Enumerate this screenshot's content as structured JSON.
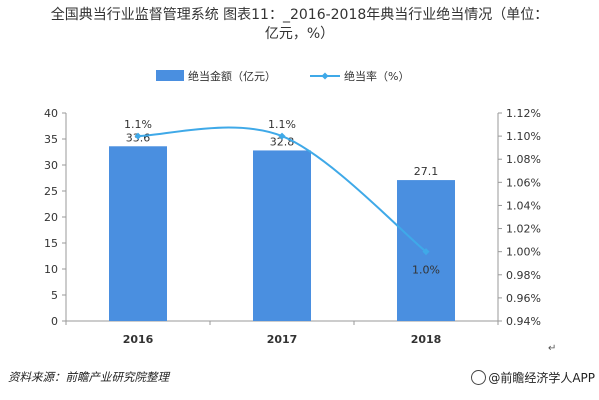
{
  "title": {
    "line1": "全国典当行业监督管理系统 图表11：_2016-2018年典当行业绝当情况（单位：",
    "line2": "亿元，%）"
  },
  "footer": {
    "source": "资料来源：前瞻产业研究院整理",
    "brand": "@前瞻经济学人APP",
    "return_mark": "↵"
  },
  "colors": {
    "bar": "#4a8fe0",
    "line": "#3fa9e8",
    "axis": "#999999",
    "text": "#333333"
  },
  "chart_data": {
    "type": "bar",
    "categories": [
      "2016",
      "2017",
      "2018"
    ],
    "series": [
      {
        "name": "绝当金额（亿元）",
        "type": "bar",
        "axis": "left",
        "values": [
          33.6,
          32.8,
          27.1
        ],
        "labels": [
          "33.6",
          "32.8",
          "27.1"
        ]
      },
      {
        "name": "绝当率（%）",
        "type": "line",
        "axis": "right",
        "values": [
          1.1,
          1.1,
          1.0
        ],
        "labels": [
          "1.1%",
          "1.1%",
          "1.0%"
        ]
      }
    ],
    "left_axis": {
      "min": 0,
      "max": 40,
      "ticks": [
        "0",
        "5",
        "10",
        "15",
        "20",
        "25",
        "30",
        "35",
        "40"
      ]
    },
    "right_axis": {
      "min": 0.94,
      "max": 1.12,
      "ticks": [
        "0.94%",
        "0.96%",
        "0.98%",
        "1.00%",
        "1.02%",
        "1.04%",
        "1.06%",
        "1.08%",
        "1.10%",
        "1.12%"
      ]
    },
    "legend_position": "top-center",
    "grid": false
  }
}
